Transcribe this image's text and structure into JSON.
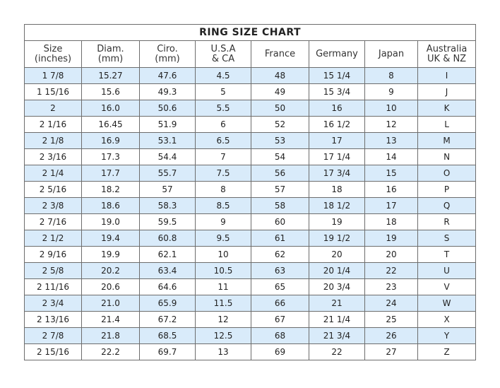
{
  "title": "RING SIZE CHART",
  "columns": [
    [
      "Size",
      "(inches)"
    ],
    [
      "Diam.",
      "(mm)"
    ],
    [
      "Ciro.",
      "(mm)"
    ],
    [
      "U.S.A",
      "& CA"
    ],
    [
      "France",
      ""
    ],
    [
      "Germany",
      ""
    ],
    [
      "Japan",
      ""
    ],
    [
      "Australia",
      "UK & NZ"
    ]
  ],
  "rows": [
    [
      "1 7/8",
      "15.27",
      "47.6",
      "4.5",
      "48",
      "15 1/4",
      "8",
      "I"
    ],
    [
      "1 15/16",
      "15.6",
      "49.3",
      "5",
      "49",
      "15 3/4",
      "9",
      "J"
    ],
    [
      "2",
      "16.0",
      "50.6",
      "5.5",
      "50",
      "16",
      "10",
      "K"
    ],
    [
      "2 1/16",
      "16.45",
      "51.9",
      "6",
      "52",
      "16 1/2",
      "12",
      "L"
    ],
    [
      "2 1/8",
      "16.9",
      "53.1",
      "6.5",
      "53",
      "17",
      "13",
      "M"
    ],
    [
      "2 3/16",
      "17.3",
      "54.4",
      "7",
      "54",
      "17 1/4",
      "14",
      "N"
    ],
    [
      "2 1/4",
      "17.7",
      "55.7",
      "7.5",
      "56",
      "17 3/4",
      "15",
      "O"
    ],
    [
      "2 5/16",
      "18.2",
      "57",
      "8",
      "57",
      "18",
      "16",
      "P"
    ],
    [
      "2 3/8",
      "18.6",
      "58.3",
      "8.5",
      "58",
      "18 1/2",
      "17",
      "Q"
    ],
    [
      "2 7/16",
      "19.0",
      "59.5",
      "9",
      "60",
      "19",
      "18",
      "R"
    ],
    [
      "2 1/2",
      "19.4",
      "60.8",
      "9.5",
      "61",
      "19 1/2",
      "19",
      "S"
    ],
    [
      "2 9/16",
      "19.9",
      "62.1",
      "10",
      "62",
      "20",
      "20",
      "T"
    ],
    [
      "2 5/8",
      "20.2",
      "63.4",
      "10.5",
      "63",
      "20 1/4",
      "22",
      "U"
    ],
    [
      "2 11/16",
      "20.6",
      "64.6",
      "11",
      "65",
      "20 3/4",
      "23",
      "V"
    ],
    [
      "2 3/4",
      "21.0",
      "65.9",
      "11.5",
      "66",
      "21",
      "24",
      "W"
    ],
    [
      "2 13/16",
      "21.4",
      "67.2",
      "12",
      "67",
      "21 1/4",
      "25",
      "X"
    ],
    [
      "2 7/8",
      "21.8",
      "68.5",
      "12.5",
      "68",
      "21 3/4",
      "26",
      "Y"
    ],
    [
      "2 15/16",
      "22.2",
      "69.7",
      "13",
      "69",
      "22",
      "27",
      "Z"
    ]
  ],
  "colors": {
    "alt_row": "#d9ebfa",
    "border": "#6d6d6d",
    "text": "#222222"
  }
}
